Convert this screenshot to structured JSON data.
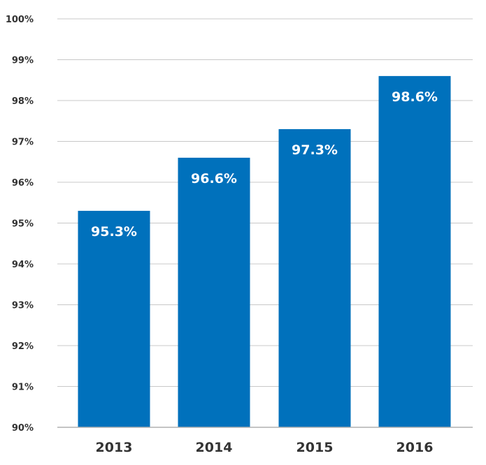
{
  "chart_data": {
    "type": "bar",
    "title": "",
    "xlabel": "",
    "ylabel": "",
    "categories": [
      "2013",
      "2014",
      "2015",
      "2016"
    ],
    "values": [
      95.3,
      96.6,
      97.3,
      98.6
    ],
    "data_labels": [
      "95.3%",
      "96.6%",
      "97.3%",
      "98.6%"
    ],
    "ylim": [
      90,
      100
    ],
    "y_ticks": [
      90,
      91,
      92,
      93,
      94,
      95,
      96,
      97,
      98,
      99,
      100
    ],
    "y_tick_labels": [
      "90%",
      "91%",
      "92%",
      "93%",
      "94%",
      "95%",
      "96%",
      "97%",
      "98%",
      "99%",
      "100%"
    ],
    "grid": true,
    "legend": "none",
    "bar_color": "#0071bc"
  }
}
